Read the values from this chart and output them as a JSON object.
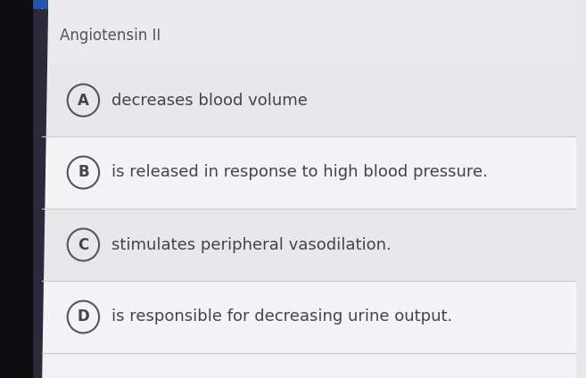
{
  "title": "Angiotensin II",
  "options": [
    {
      "letter": "A",
      "text": "decreases blood volume"
    },
    {
      "letter": "B",
      "text": "is released in response to high blood pressure."
    },
    {
      "letter": "C",
      "text": "stimulates peripheral vasodilation."
    },
    {
      "letter": "D",
      "text": "is responsible for decreasing urine output."
    }
  ],
  "bg_color": "#e8e8ec",
  "card_bg": "#f0f0f2",
  "left_edge_color": "#111111",
  "left_edge2_color": "#1a1a2e",
  "title_color": "#555558",
  "text_color": "#444448",
  "circle_edge_color": "#555558",
  "divider_color": "#c8c8cc",
  "title_fontsize": 12,
  "option_fontsize": 13,
  "letter_fontsize": 12
}
